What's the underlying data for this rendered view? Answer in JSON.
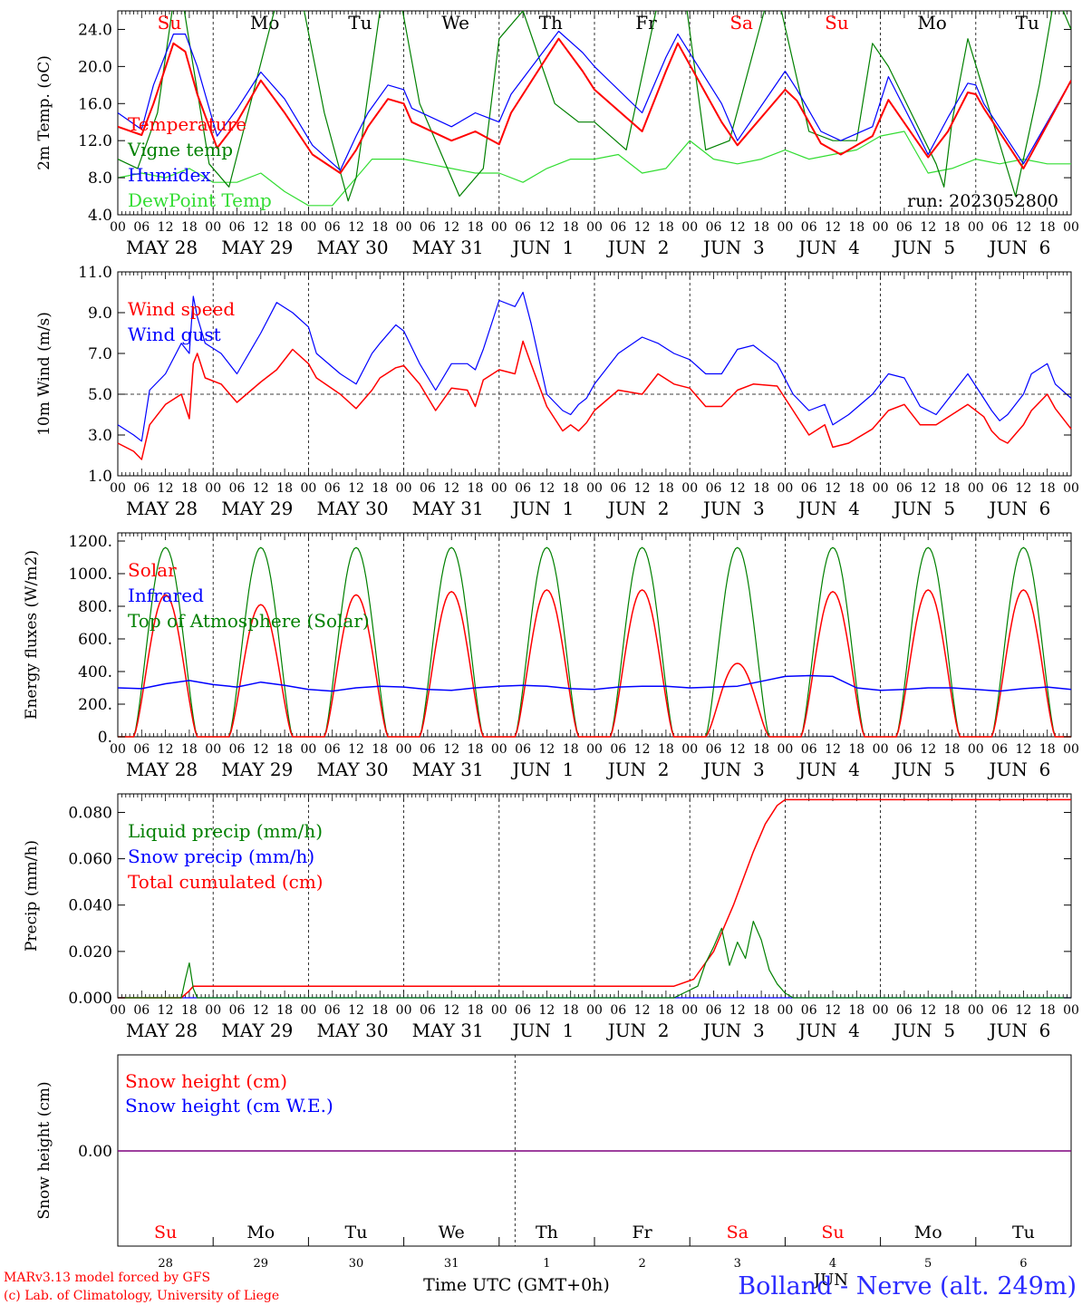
{
  "colors": {
    "red": "#ff0000",
    "blue": "#0000ff",
    "green_dark": "#008000",
    "green_light": "#33dd33",
    "purple": "#7f007f",
    "title_blue": "#2a2aff"
  },
  "time_axis": {
    "hour_ticks": [
      "00",
      "06",
      "12",
      "18"
    ],
    "final_hour": "00",
    "dates": [
      "MAY 28",
      "MAY 29",
      "MAY 30",
      "MAY 31",
      "JUN  1",
      "JUN  2",
      "JUN  3",
      "JUN  4",
      "JUN  5",
      "JUN  6"
    ],
    "weekdays": [
      {
        "label": "Su",
        "color": "#ff0000"
      },
      {
        "label": "Mo",
        "color": "#000000"
      },
      {
        "label": "Tu",
        "color": "#000000"
      },
      {
        "label": "We",
        "color": "#000000"
      },
      {
        "label": "Th",
        "color": "#000000"
      },
      {
        "label": "Fr",
        "color": "#000000"
      },
      {
        "label": "Sa",
        "color": "#ff0000"
      },
      {
        "label": "Su",
        "color": "#ff0000"
      },
      {
        "label": "Mo",
        "color": "#000000"
      },
      {
        "label": "Tu",
        "color": "#000000"
      }
    ],
    "day_numbers": [
      "28",
      "29",
      "30",
      "31",
      "1",
      "2",
      "3",
      "4",
      "5",
      "6"
    ],
    "month_label": "JUN",
    "xlabel": "Time UTC (GMT+0h)"
  },
  "chart_data": [
    {
      "id": "temperature",
      "type": "line",
      "ylabel": "2m Temp. (oC)",
      "ylim": [
        4,
        26
      ],
      "yticks": [
        4,
        8,
        12,
        16,
        20,
        24
      ],
      "ytick_labels": [
        "4.0",
        "8.0",
        "12.0",
        "16.0",
        "20.0",
        "24.0"
      ],
      "x_hours_range": [
        0,
        240
      ],
      "run_label": "run: 2023052800",
      "series": [
        {
          "name": "Temperature",
          "color": "#ff0000",
          "width": 2,
          "x": [
            0,
            6,
            9,
            14,
            17,
            20,
            25,
            30,
            36,
            42,
            49,
            56,
            60,
            63,
            68,
            72,
            74,
            84,
            90,
            96,
            99,
            111,
            117,
            120,
            132,
            138,
            141,
            152,
            156,
            168,
            171,
            177,
            182,
            190,
            194,
            204,
            209,
            214,
            216,
            218,
            228,
            240
          ],
          "y": [
            13.5,
            12.6,
            16,
            22.5,
            21.6,
            17,
            11.2,
            14,
            18.5,
            15,
            10.5,
            8.5,
            11,
            13.5,
            16.5,
            16,
            14,
            12,
            13,
            11.6,
            15,
            23,
            19.5,
            17.5,
            13,
            19.5,
            22.5,
            14,
            11.5,
            17.5,
            16.3,
            11.7,
            10.5,
            12.5,
            16.4,
            10.2,
            13,
            17.2,
            17,
            15.5,
            9,
            18.5
          ]
        },
        {
          "name": "Vigne temp",
          "color": "#008000",
          "width": 1.2,
          "x": [
            0,
            5,
            10,
            14,
            16,
            19,
            23,
            28,
            34,
            40,
            46,
            52,
            58,
            60,
            66,
            70,
            76,
            86,
            92,
            96,
            102,
            110,
            116,
            120,
            128,
            130,
            136,
            143,
            148,
            154,
            164,
            166,
            174,
            180,
            186,
            190,
            194,
            206,
            208,
            210,
            214,
            226,
            232,
            236,
            240
          ],
          "y": [
            10,
            9,
            15,
            27,
            28,
            20,
            9.5,
            7,
            17,
            27,
            28,
            15,
            5.5,
            8,
            26,
            30,
            16,
            6,
            9,
            23,
            26,
            16,
            14,
            14,
            11,
            15,
            27,
            27,
            11,
            12,
            28,
            28,
            13,
            12,
            12,
            22.5,
            20,
            9.5,
            7,
            14,
            23,
            6,
            18,
            28,
            24
          ]
        },
        {
          "name": "Humidex",
          "color": "#0000ff",
          "width": 1.2,
          "x": [
            0,
            6,
            9,
            14,
            17,
            20,
            25,
            30,
            36,
            42,
            49,
            56,
            60,
            63,
            68,
            72,
            74,
            84,
            90,
            96,
            99,
            111,
            117,
            120,
            132,
            138,
            141,
            152,
            156,
            168,
            171,
            177,
            182,
            190,
            194,
            204,
            209,
            214,
            216,
            218,
            228,
            240
          ],
          "y": [
            15,
            13.2,
            18,
            23.5,
            23.5,
            20,
            12.5,
            15.4,
            19.4,
            16.5,
            11.5,
            8.8,
            12.5,
            15,
            18,
            17.5,
            15.5,
            13.5,
            15,
            14,
            17,
            23.8,
            21.5,
            20,
            15,
            21,
            23.5,
            16,
            12,
            19.5,
            17.5,
            13,
            12,
            13.5,
            18.9,
            10.5,
            14.5,
            18.2,
            18,
            16,
            9.5,
            18.5
          ]
        },
        {
          "name": "DewPoint Temp",
          "color": "#33dd33",
          "width": 1.2,
          "x": [
            0,
            6,
            12,
            18,
            24,
            30,
            36,
            42,
            48,
            54,
            60,
            64,
            66,
            72,
            78,
            84,
            90,
            96,
            102,
            108,
            114,
            120,
            126,
            132,
            138,
            144,
            150,
            156,
            162,
            168,
            174,
            180,
            186,
            192,
            198,
            204,
            210,
            216,
            222,
            228,
            234,
            240
          ],
          "y": [
            8,
            8.5,
            8,
            9,
            7.5,
            7.5,
            8.5,
            6.5,
            5,
            5,
            8,
            10,
            10,
            10,
            9.5,
            9,
            8.5,
            8.5,
            7.5,
            9,
            10,
            10,
            10.5,
            8.5,
            9,
            12,
            10,
            9.5,
            10,
            11,
            10,
            10.5,
            11,
            12.5,
            13,
            8.5,
            9,
            10,
            9.5,
            10,
            9.5,
            9.5
          ]
        }
      ]
    },
    {
      "id": "wind",
      "type": "line",
      "ylabel": "10m Wind (m/s)",
      "ylim": [
        1,
        11
      ],
      "yticks": [
        1,
        3,
        5,
        7,
        9,
        11
      ],
      "ytick_labels": [
        "1.0",
        "3.0",
        "5.0",
        "7.0",
        "9.0",
        "11.0"
      ],
      "ref_line": 5,
      "series": [
        {
          "name": "Wind speed",
          "color": "#ff0000",
          "width": 1.5,
          "x": [
            0,
            4,
            6,
            8,
            12,
            16,
            18,
            19,
            20,
            22,
            26,
            30,
            36,
            40,
            44,
            48,
            50,
            56,
            60,
            64,
            66,
            70,
            72,
            76,
            80,
            84,
            88,
            90,
            92,
            96,
            100,
            102,
            104,
            108,
            112,
            114,
            116,
            118,
            120,
            126,
            132,
            136,
            140,
            144,
            148,
            152,
            156,
            160,
            166,
            170,
            174,
            178,
            180,
            184,
            190,
            194,
            198,
            202,
            206,
            210,
            214,
            218,
            220,
            222,
            224,
            228,
            230,
            234,
            236,
            240
          ],
          "y": [
            2.6,
            2.2,
            1.8,
            3.5,
            4.5,
            5,
            3.8,
            6.5,
            7,
            5.8,
            5.5,
            4.6,
            5.6,
            6.2,
            7.2,
            6.5,
            5.8,
            5,
            4.3,
            5.2,
            5.8,
            6.3,
            6.4,
            5.5,
            4.2,
            5.3,
            5.2,
            4.4,
            5.7,
            6.2,
            6,
            7.6,
            6.5,
            4.4,
            3.2,
            3.5,
            3.2,
            3.6,
            4.2,
            5.2,
            5,
            6,
            5.5,
            5.3,
            4.4,
            4.4,
            5.2,
            5.5,
            5.4,
            4.2,
            3,
            3.5,
            2.4,
            2.6,
            3.3,
            4.2,
            4.5,
            3.5,
            3.5,
            4,
            4.5,
            3.9,
            3.2,
            2.8,
            2.6,
            3.5,
            4.2,
            5,
            4.3,
            3.3
          ]
        },
        {
          "name": "Wind gust",
          "color": "#0000ff",
          "width": 1.2,
          "x": [
            0,
            4,
            6,
            8,
            12,
            16,
            18,
            19,
            20,
            22,
            26,
            30,
            36,
            40,
            44,
            48,
            50,
            56,
            60,
            64,
            66,
            70,
            72,
            76,
            80,
            84,
            88,
            90,
            92,
            96,
            100,
            102,
            104,
            108,
            112,
            114,
            116,
            118,
            120,
            126,
            132,
            136,
            140,
            144,
            148,
            152,
            156,
            160,
            166,
            170,
            174,
            178,
            180,
            184,
            190,
            194,
            198,
            202,
            206,
            210,
            214,
            218,
            220,
            222,
            224,
            228,
            230,
            234,
            236,
            240
          ],
          "y": [
            3.5,
            3,
            2.7,
            5.2,
            6,
            7.5,
            7,
            9.8,
            8.8,
            7.5,
            7,
            6,
            8,
            9.5,
            9,
            8.3,
            7,
            6,
            5.5,
            7,
            7.5,
            8.4,
            8.1,
            6.5,
            5.2,
            6.5,
            6.5,
            6.2,
            7.2,
            9.6,
            9.3,
            10,
            8.5,
            5,
            4.2,
            4,
            4.5,
            4.8,
            5.5,
            7,
            7.8,
            7.5,
            7,
            6.7,
            6,
            6,
            7.2,
            7.4,
            6.5,
            5,
            4.2,
            4.5,
            3.5,
            4,
            5,
            6,
            5.8,
            4.4,
            4,
            5,
            6,
            4.8,
            4.2,
            3.7,
            4,
            5,
            6,
            6.5,
            5.5,
            4.8
          ]
        }
      ]
    },
    {
      "id": "energy",
      "type": "line",
      "ylabel": "Energy fluxes (W/m2)",
      "ylim": [
        0,
        1250
      ],
      "yticks": [
        0,
        200,
        400,
        600,
        800,
        1000,
        1200
      ],
      "ytick_labels": [
        "0.",
        "200.",
        "400.",
        "600.",
        "800.",
        "1000.",
        "1200."
      ],
      "series": [
        {
          "name": "Solar",
          "color": "#ff0000",
          "width": 1.5,
          "daily_peaks": [
            870,
            810,
            870,
            890,
            900,
            900,
            450,
            890,
            900,
            900
          ],
          "sunrise_h": 4,
          "sunset_h": 20
        },
        {
          "name": "Infrared",
          "color": "#0000ff",
          "width": 1.5,
          "x": [
            0,
            6,
            12,
            18,
            24,
            30,
            36,
            42,
            48,
            54,
            60,
            66,
            72,
            78,
            84,
            90,
            96,
            102,
            108,
            114,
            120,
            126,
            132,
            138,
            144,
            150,
            156,
            162,
            168,
            174,
            180,
            186,
            192,
            198,
            204,
            210,
            216,
            222,
            228,
            234,
            240
          ],
          "y": [
            300,
            295,
            325,
            345,
            320,
            305,
            335,
            315,
            290,
            280,
            300,
            310,
            305,
            290,
            285,
            300,
            310,
            315,
            310,
            295,
            290,
            305,
            310,
            310,
            300,
            305,
            310,
            340,
            370,
            375,
            370,
            300,
            285,
            290,
            300,
            300,
            290,
            280,
            295,
            305,
            290
          ]
        },
        {
          "name": "Top of Atmosphere (Solar)",
          "color": "#008000",
          "width": 1.2,
          "daily_peaks": [
            1160,
            1160,
            1160,
            1160,
            1160,
            1160,
            1160,
            1160,
            1160,
            1160
          ],
          "sunrise_h": 4,
          "sunset_h": 20
        }
      ]
    },
    {
      "id": "precip",
      "type": "line",
      "ylabel": "Precip (mm/h)",
      "ylim": [
        0,
        0.088
      ],
      "yticks": [
        0,
        0.02,
        0.04,
        0.06,
        0.08
      ],
      "ytick_labels": [
        "0.000",
        "0.020",
        "0.040",
        "0.060",
        "0.080"
      ],
      "series": [
        {
          "name": "Liquid precip (mm/h)",
          "color": "#008000",
          "width": 1.2,
          "x": [
            0,
            16,
            17,
            18,
            19,
            20,
            21,
            140,
            146,
            148,
            150,
            152,
            154,
            156,
            158,
            160,
            162,
            164,
            166,
            168,
            170,
            240
          ],
          "y": [
            0,
            0,
            0.008,
            0.015,
            0.004,
            0,
            0,
            0,
            0.005,
            0.015,
            0.022,
            0.03,
            0.014,
            0.024,
            0.017,
            0.033,
            0.025,
            0.012,
            0.006,
            0.002,
            0,
            0
          ]
        },
        {
          "name": "Snow precip (mm/h)",
          "color": "#0000ff",
          "width": 1.2,
          "x": [
            0,
            240
          ],
          "y": [
            0,
            0
          ]
        },
        {
          "name": "Total cumulated (cm)",
          "color": "#ff0000",
          "width": 1.5,
          "x": [
            0,
            16,
            18,
            19,
            140,
            145,
            150,
            155,
            160,
            163,
            166,
            168,
            240
          ],
          "y": [
            0,
            0,
            0.003,
            0.005,
            0.005,
            0.008,
            0.02,
            0.04,
            0.063,
            0.075,
            0.083,
            0.0855,
            0.0855
          ]
        }
      ]
    },
    {
      "id": "snow",
      "type": "line",
      "ylabel": "Snow height (cm)",
      "ytick_labels": [
        "0.00"
      ],
      "series": [
        {
          "name": "Snow height (cm)",
          "color": "#ff0000",
          "width": 1.2,
          "x": [
            0,
            240
          ],
          "y": [
            0,
            0
          ]
        },
        {
          "name": "Snow height (cm W.E.)",
          "color": "#0000ff",
          "width": 1.2,
          "x": [
            0,
            240
          ],
          "y": [
            0,
            0
          ]
        }
      ]
    }
  ],
  "footer": {
    "model_line": "MARv3.13 model forced by GFS",
    "lab_line": "(c) Lab. of Climatology, University of Liege",
    "station": "Bolland - Nerve (alt. 249m)"
  }
}
